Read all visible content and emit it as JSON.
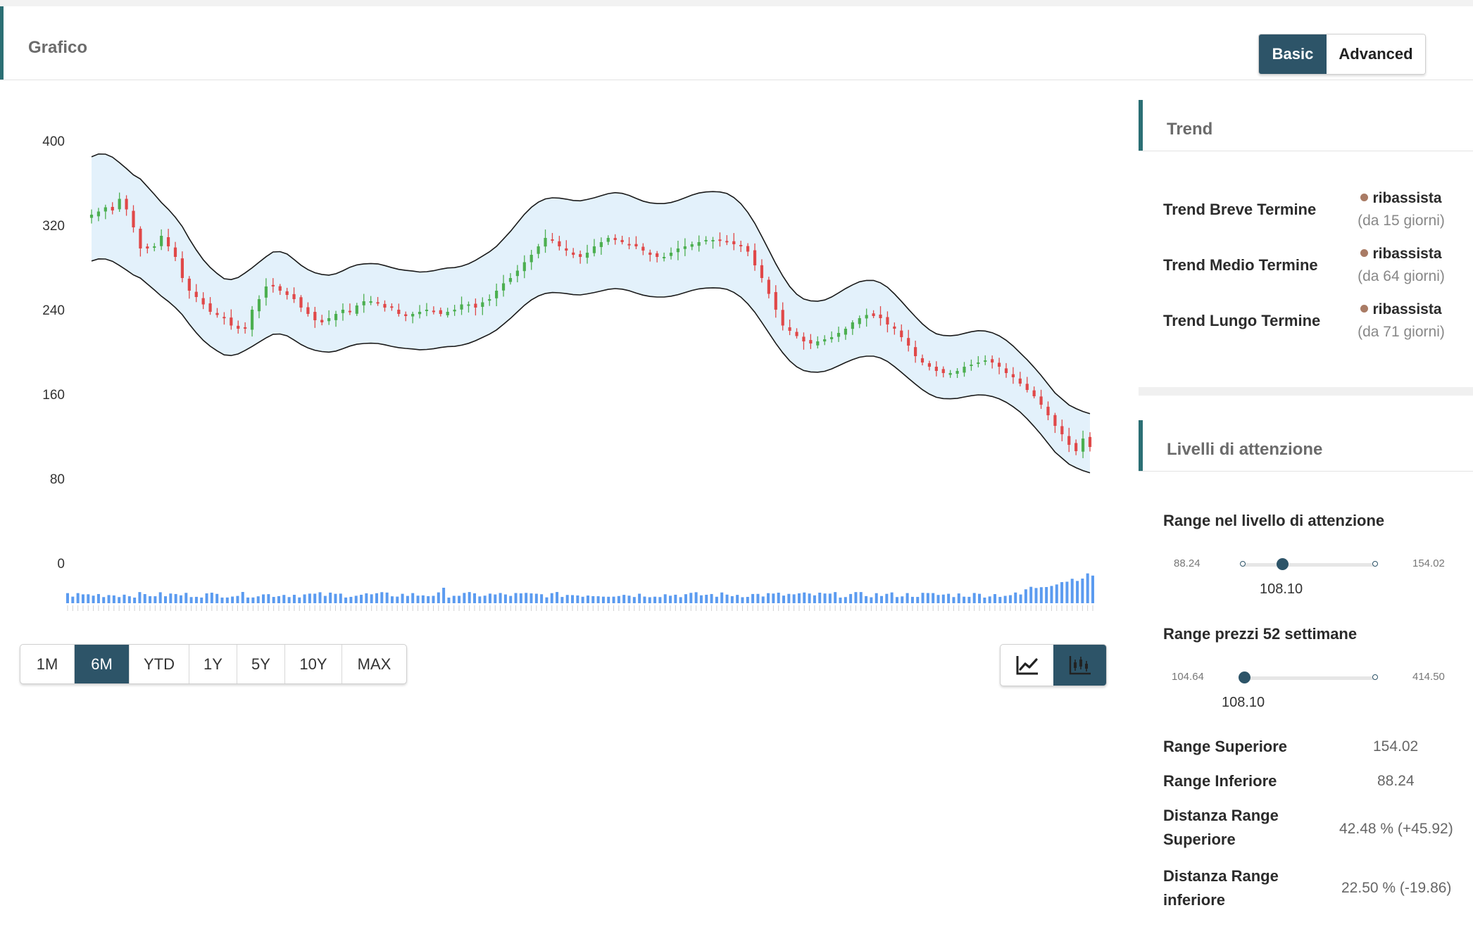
{
  "header": {
    "title": "Grafico",
    "basic_label": "Basic",
    "advanced_label": "Advanced"
  },
  "periods": [
    "1M",
    "6M",
    "YTD",
    "1Y",
    "5Y",
    "10Y",
    "MAX"
  ],
  "active_period": "6M",
  "chart_type": {
    "options": [
      "line-chart-icon",
      "candlestick-icon"
    ],
    "active": "candlestick-icon"
  },
  "chart_data": {
    "type": "candlestick",
    "y_ticks": [
      400,
      320,
      240,
      160,
      80,
      0
    ],
    "ylim": [
      0,
      400
    ],
    "grid": false,
    "band": "shaded envelope around price",
    "colors": {
      "up": "#4caf50",
      "down": "#e04848",
      "band_fill": "#e3f1fb",
      "band_line": "#1a1a1a",
      "volume": "#5b9bf0"
    },
    "close": [
      330,
      333,
      337,
      334,
      345,
      335,
      318,
      298,
      298,
      300,
      310,
      300,
      290,
      270,
      258,
      252,
      245,
      238,
      235,
      232,
      225,
      222,
      222,
      240,
      250,
      262,
      262,
      258,
      254,
      250,
      242,
      236,
      230,
      228,
      232,
      236,
      240,
      238,
      244,
      248,
      248,
      246,
      242,
      242,
      236,
      234,
      236,
      238,
      240,
      238,
      236,
      238,
      240,
      245,
      245,
      242,
      247,
      250,
      258,
      265,
      270,
      277,
      285,
      292,
      300,
      308,
      306,
      300,
      296,
      292,
      290,
      294,
      300,
      304,
      308,
      306,
      304,
      302,
      300,
      296,
      292,
      290,
      290,
      294,
      298,
      300,
      302,
      304,
      306,
      306,
      306,
      304,
      302,
      300,
      295,
      282,
      270,
      255,
      240,
      225,
      220,
      215,
      210,
      208,
      210,
      212,
      214,
      218,
      222,
      228,
      232,
      235,
      234,
      232,
      226,
      222,
      214,
      206,
      196,
      190,
      186,
      182,
      180,
      180,
      182,
      186,
      188,
      190,
      192,
      190,
      186,
      180,
      176,
      170,
      164,
      158,
      150,
      140,
      130,
      122,
      112,
      106,
      118,
      110
    ]
  },
  "trend": {
    "title": "Trend",
    "rows": [
      {
        "label": "Trend Breve Termine",
        "value": "ribassista",
        "since": "(da 15 giorni)"
      },
      {
        "label": "Trend Medio Termine",
        "value": "ribassista",
        "since": "(da 64 giorni)"
      },
      {
        "label": "Trend Lungo Termine",
        "value": "ribassista",
        "since": "(da 71 giorni)"
      }
    ]
  },
  "levels": {
    "title": "Livelli di attenzione",
    "range_attention": {
      "label": "Range nel livello di attenzione",
      "min": "88.24",
      "max": "154.02",
      "current": "108.10",
      "position": 0.3
    },
    "range_52w": {
      "label": "Range prezzi 52 settimane",
      "min": "104.64",
      "max": "414.50",
      "current": "108.10",
      "position": 0.01
    },
    "range_superiore": {
      "label": "Range Superiore",
      "value": "154.02"
    },
    "range_inferiore": {
      "label": "Range Inferiore",
      "value": "88.24"
    },
    "distanza_superiore": {
      "label_1": "Distanza Range",
      "label_2": "Superiore",
      "value": "42.48 % (+45.92)"
    },
    "distanza_inferiore": {
      "label_1": "Distanza Range",
      "label_2": "inferiore",
      "value": "22.50 % (-19.86)"
    }
  }
}
